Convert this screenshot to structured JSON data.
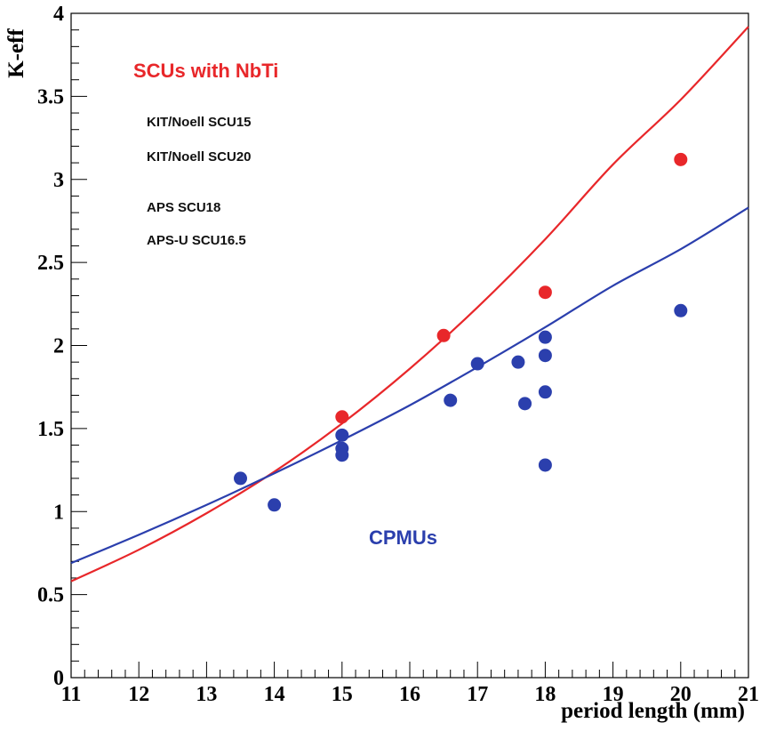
{
  "chart_data": {
    "type": "scatter",
    "title": "",
    "xlabel": "period length (mm)",
    "ylabel": "K-eff",
    "xlim": [
      11,
      21
    ],
    "ylim": [
      0,
      4
    ],
    "x_ticks": [
      "11",
      "12",
      "13",
      "14",
      "15",
      "16",
      "17",
      "18",
      "19",
      "20",
      "21"
    ],
    "y_ticks": [
      "0",
      "0.5",
      "1",
      "1.5",
      "2",
      "2.5",
      "3",
      "3.5",
      "4"
    ],
    "grid": false,
    "series": [
      {
        "name": "SCUs with NbTi",
        "color": "#e8272a",
        "points": [
          [
            15,
            1.57
          ],
          [
            16.5,
            2.06
          ],
          [
            18,
            2.32
          ],
          [
            20,
            3.12
          ]
        ],
        "curve": [
          [
            11,
            0.58
          ],
          [
            12,
            0.77
          ],
          [
            13,
            0.99
          ],
          [
            14,
            1.24
          ],
          [
            15,
            1.53
          ],
          [
            16,
            1.86
          ],
          [
            17,
            2.23
          ],
          [
            18,
            2.64
          ],
          [
            19,
            3.09
          ],
          [
            20,
            3.48
          ],
          [
            21,
            3.92
          ]
        ]
      },
      {
        "name": "CPMUs",
        "color": "#2b3fad",
        "points": [
          [
            13.5,
            1.2
          ],
          [
            14,
            1.04
          ],
          [
            15,
            1.46
          ],
          [
            15,
            1.38
          ],
          [
            15,
            1.34
          ],
          [
            16.6,
            1.67
          ],
          [
            17,
            1.89
          ],
          [
            17.6,
            1.9
          ],
          [
            17.7,
            1.65
          ],
          [
            18,
            2.05
          ],
          [
            18,
            1.94
          ],
          [
            18,
            1.72
          ],
          [
            18,
            1.28
          ],
          [
            20,
            2.21
          ]
        ],
        "curve": [
          [
            11,
            0.69
          ],
          [
            12,
            0.86
          ],
          [
            13,
            1.04
          ],
          [
            14,
            1.23
          ],
          [
            15,
            1.43
          ],
          [
            16,
            1.64
          ],
          [
            17,
            1.87
          ],
          [
            18,
            2.11
          ],
          [
            19,
            2.36
          ],
          [
            20,
            2.58
          ],
          [
            21,
            2.83
          ]
        ]
      }
    ],
    "annotations": {
      "scu_label": "SCUs with NbTi",
      "scu_items": [
        "KIT/Noell SCU15",
        "KIT/Noell SCU20",
        "APS SCU18",
        "APS-U SCU16.5"
      ],
      "cpmu_label": "CPMUs"
    }
  }
}
